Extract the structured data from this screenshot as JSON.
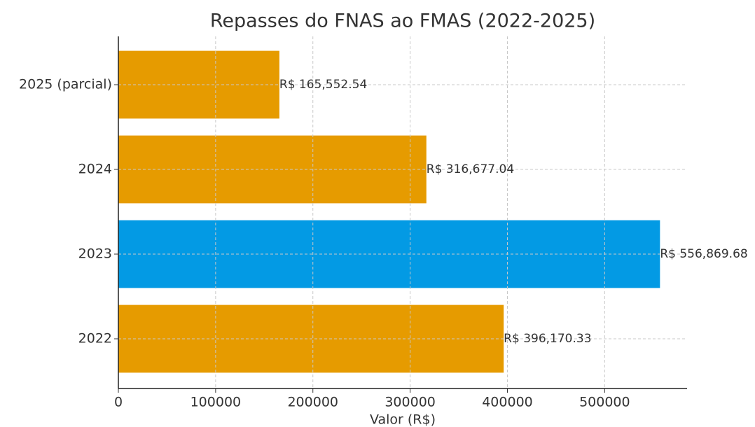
{
  "chart_data": {
    "type": "barh",
    "title": "Repasses do FNAS ao FMAS (2022-2025)",
    "xlabel": "Valor (R$)",
    "categories": [
      "2022",
      "2023",
      "2024",
      "2025 (parcial)"
    ],
    "values": [
      396170.33,
      556869.68,
      316677.04,
      165552.54
    ],
    "value_labels": [
      "R$ 396,170.33",
      "R$ 556,869.68",
      "R$ 316,677.04",
      "R$ 165,552.54"
    ],
    "colors": [
      "#e69b00",
      "#039ae4",
      "#e69b00",
      "#e69b00"
    ],
    "xlim": [
      0,
      584713
    ],
    "xticks": [
      0,
      100000,
      200000,
      300000,
      400000,
      500000
    ],
    "grid": true
  }
}
